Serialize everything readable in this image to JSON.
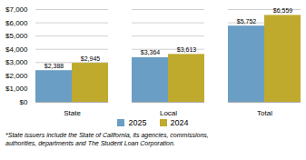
{
  "chart_data": {
    "type": "bar",
    "categories": [
      "State",
      "Local",
      "Total"
    ],
    "series": [
      {
        "name": "2025",
        "color": "#6a9ec5",
        "values": [
          2388,
          3364,
          5752
        ],
        "value_labels": [
          "$2,388",
          "$3,364",
          "$5,752"
        ]
      },
      {
        "name": "2024",
        "color": "#bfaa2e",
        "values": [
          2945,
          3613,
          6559
        ],
        "value_labels": [
          "$2,945",
          "$3,613",
          "$6,559"
        ]
      }
    ],
    "ylim": [
      0,
      7000
    ],
    "yticks": [
      {
        "value": 0,
        "label": "$0"
      },
      {
        "value": 1000,
        "label": "$1,000"
      },
      {
        "value": 2000,
        "label": "$2,000"
      },
      {
        "value": 3000,
        "label": "$3,000"
      },
      {
        "value": 4000,
        "label": "$4,000"
      },
      {
        "value": 5000,
        "label": "$5,000"
      },
      {
        "value": 6000,
        "label": "$6,000"
      },
      {
        "value": 7000,
        "label": "$7,000"
      }
    ],
    "grid": true,
    "data_labels": true,
    "legend": "bottom",
    "annotations": [
      "*State issuers include the State of California, its agencies, commissions,",
      "authorities, departments and The Student Loan Corporation."
    ]
  }
}
